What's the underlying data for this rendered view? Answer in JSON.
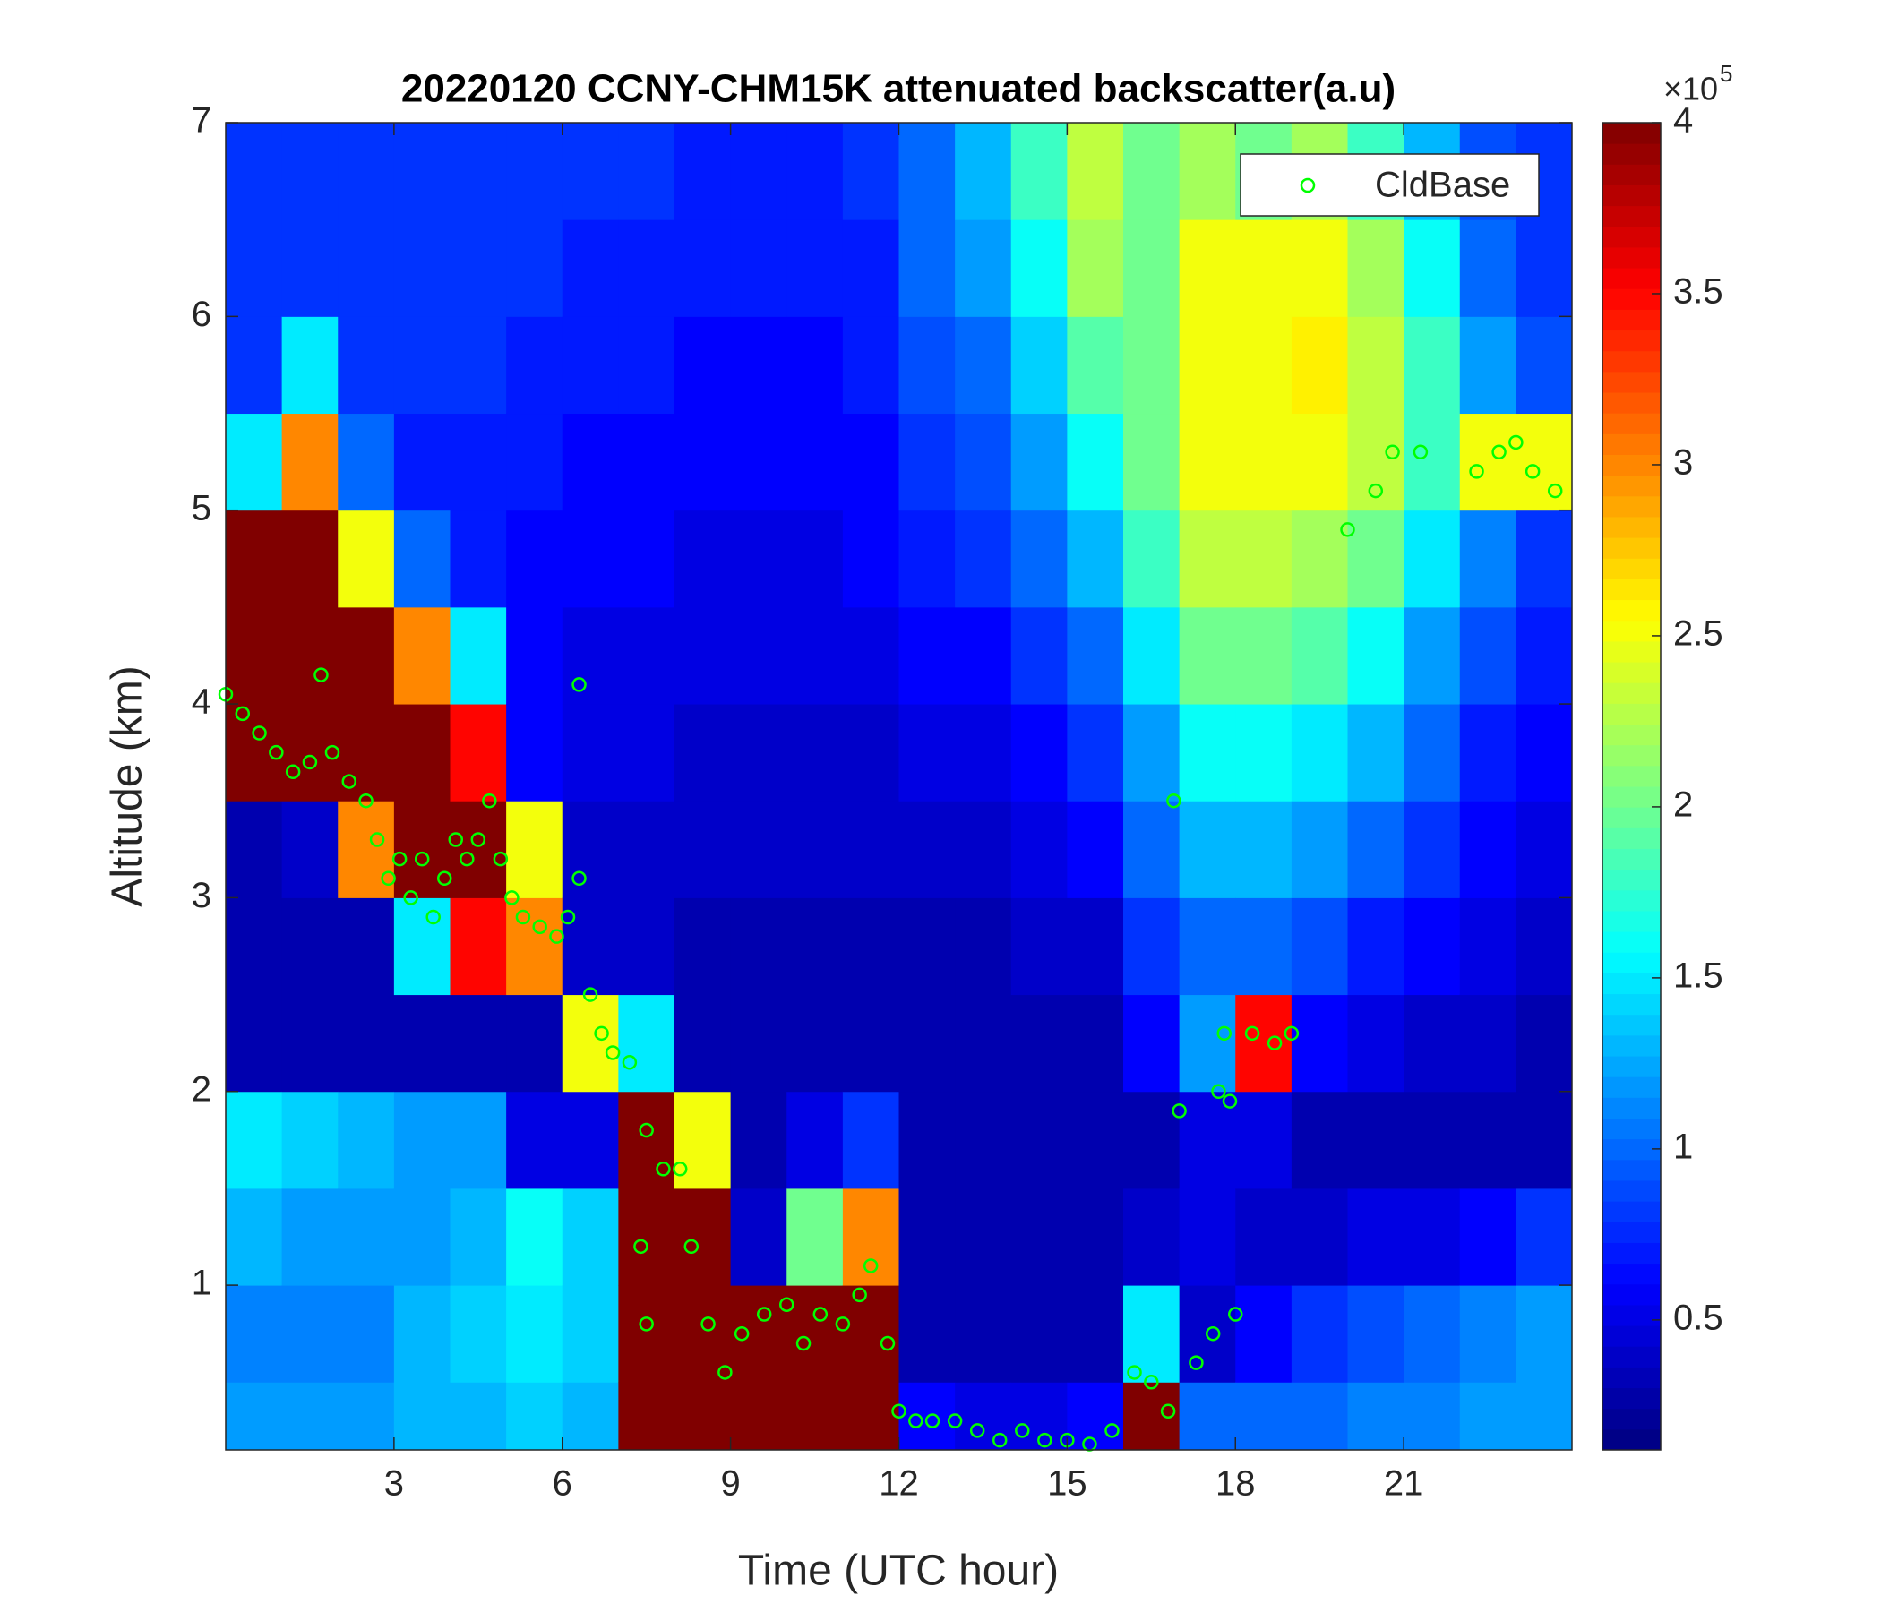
{
  "chart_data": {
    "type": "heatmap",
    "title": "20220120 CCNY-CHM15K attenuated backscatter(a.u)",
    "xlabel": "Time (UTC hour)",
    "ylabel": "Altitude (km)",
    "xlim": [
      0,
      24
    ],
    "ylim": [
      0.15,
      7
    ],
    "xticks": [
      3,
      6,
      9,
      12,
      15,
      18,
      21
    ],
    "yticks": [
      1,
      2,
      3,
      4,
      5,
      6,
      7
    ],
    "x_edges": [
      0,
      1,
      2,
      3,
      4,
      5,
      6,
      7,
      8,
      9,
      10,
      11,
      12,
      13,
      14,
      15,
      16,
      17,
      18,
      19,
      20,
      21,
      22,
      23,
      24
    ],
    "y_edges": [
      0.15,
      0.5,
      1,
      1.5,
      2,
      2.5,
      3,
      3.5,
      4,
      4.5,
      5,
      5.5,
      6,
      6.5,
      7
    ],
    "z": [
      [
        1.2,
        1.1,
        1.3,
        1.5,
        0.3,
        0.3,
        0.3,
        4,
        4,
        4,
        1.5,
        0.8,
        0.8,
        0.8
      ],
      [
        1.2,
        1.1,
        1.2,
        1.4,
        0.3,
        0.3,
        0.4,
        4,
        4,
        4,
        3,
        1.5,
        0.8,
        0.8
      ],
      [
        1.2,
        1.1,
        1.2,
        1.3,
        0.3,
        0.3,
        3,
        4,
        4,
        2.5,
        1.0,
        0.8,
        0.8,
        0.8
      ],
      [
        1.3,
        1.3,
        1.2,
        1.2,
        0.3,
        1.5,
        4,
        4,
        3,
        1.0,
        0.7,
        0.8,
        0.8,
        0.8
      ],
      [
        1.3,
        1.4,
        1.3,
        1.2,
        0.3,
        3.5,
        4,
        3.5,
        1.5,
        0.7,
        0.7,
        0.8,
        0.8,
        0.8
      ],
      [
        1.4,
        1.5,
        1.6,
        0.5,
        0.3,
        3,
        2.5,
        0.6,
        0.6,
        0.6,
        0.7,
        0.7,
        0.8,
        0.8
      ],
      [
        1.3,
        1.4,
        1.4,
        0.5,
        2.5,
        0.4,
        0.4,
        0.5,
        0.5,
        0.6,
        0.6,
        0.7,
        0.7,
        0.8
      ],
      [
        4,
        4,
        4,
        4,
        1.5,
        0.4,
        0.4,
        0.5,
        0.5,
        0.6,
        0.6,
        0.7,
        0.7,
        0.8
      ],
      [
        4,
        4,
        4,
        2.5,
        0.3,
        0.3,
        0.4,
        0.4,
        0.5,
        0.5,
        0.6,
        0.6,
        0.7,
        0.7
      ],
      [
        4,
        4,
        0.4,
        0.3,
        0.3,
        0.3,
        0.4,
        0.4,
        0.5,
        0.5,
        0.6,
        0.6,
        0.7,
        0.7
      ],
      [
        4,
        4,
        2,
        0.5,
        0.3,
        0.3,
        0.4,
        0.4,
        0.5,
        0.5,
        0.6,
        0.6,
        0.7,
        0.7
      ],
      [
        4,
        4,
        3,
        0.8,
        0.3,
        0.3,
        0.4,
        0.4,
        0.5,
        0.6,
        0.6,
        0.7,
        0.7,
        0.8
      ],
      [
        0.6,
        0.3,
        0.3,
        0.3,
        0.3,
        0.3,
        0.4,
        0.5,
        0.6,
        0.7,
        0.8,
        0.9,
        1.0,
        1.0
      ],
      [
        0.5,
        0.3,
        0.3,
        0.3,
        0.3,
        0.3,
        0.4,
        0.5,
        0.6,
        0.8,
        0.9,
        1.0,
        1.2,
        1.3
      ],
      [
        0.5,
        0.3,
        0.3,
        0.3,
        0.3,
        0.4,
        0.5,
        0.6,
        0.8,
        1.0,
        1.2,
        1.4,
        1.6,
        1.8
      ],
      [
        0.6,
        0.3,
        0.3,
        0.3,
        0.3,
        0.4,
        0.6,
        0.8,
        1.0,
        1.3,
        1.6,
        1.9,
        2.2,
        2.3
      ],
      [
        4,
        1.5,
        0.4,
        0.3,
        0.6,
        0.8,
        1.0,
        1.2,
        1.5,
        1.8,
        2,
        2,
        2,
        2
      ],
      [
        1.0,
        0.4,
        0.5,
        0.5,
        1.2,
        1.0,
        1.3,
        1.6,
        2,
        2.3,
        2.5,
        2.5,
        2.5,
        2.2
      ],
      [
        1.0,
        0.6,
        0.4,
        0.5,
        3.5,
        1.0,
        1.3,
        1.6,
        2,
        2.3,
        2.5,
        2.5,
        2.5,
        2.0
      ],
      [
        1.0,
        0.8,
        0.4,
        0.3,
        0.6,
        0.9,
        1.2,
        1.5,
        1.9,
        2.2,
        2.5,
        2.6,
        2.5,
        2.2
      ],
      [
        1.1,
        0.9,
        0.5,
        0.3,
        0.5,
        0.7,
        1.0,
        1.3,
        1.6,
        2.0,
        2.3,
        2.3,
        2.2,
        1.8
      ],
      [
        1.1,
        1.0,
        0.5,
        0.3,
        0.4,
        0.6,
        0.8,
        1.0,
        1.2,
        1.5,
        1.8,
        1.8,
        1.6,
        1.3
      ],
      [
        1.2,
        1.1,
        0.6,
        0.3,
        0.4,
        0.5,
        0.6,
        0.7,
        0.9,
        1.1,
        2.5,
        1.2,
        1.0,
        0.9
      ],
      [
        1.2,
        1.2,
        0.8,
        0.3,
        0.3,
        0.4,
        0.5,
        0.6,
        0.7,
        0.8,
        2.5,
        0.9,
        0.8,
        0.8
      ]
    ],
    "clim": [
      0.12,
      4
    ],
    "cticks": [
      0.5,
      1,
      1.5,
      2,
      2.5,
      3,
      3.5,
      4
    ],
    "colorbar_multiplier": {
      "base": "×10",
      "exponent": "5"
    },
    "colormap": "jet",
    "legend": "northeast",
    "series": [
      {
        "name": "CldBase",
        "type": "scatter",
        "color": "#00ff00",
        "x": [
          0.0,
          0.3,
          0.6,
          0.9,
          1.2,
          1.5,
          1.7,
          1.9,
          2.2,
          2.5,
          2.7,
          2.9,
          3.1,
          3.3,
          3.5,
          3.7,
          3.9,
          4.1,
          4.3,
          4.5,
          4.7,
          4.9,
          5.1,
          5.3,
          5.6,
          5.9,
          6.1,
          6.3,
          6.3,
          6.5,
          6.7,
          6.9,
          7.2,
          7.5,
          7.4,
          7.5,
          7.8,
          8.1,
          8.3,
          8.6,
          8.9,
          9.2,
          9.6,
          10.0,
          10.3,
          10.6,
          11.0,
          11.3,
          11.5,
          11.8,
          12.0,
          12.3,
          12.6,
          13.0,
          13.4,
          13.8,
          14.2,
          14.6,
          15.0,
          15.4,
          15.8,
          16.2,
          16.5,
          16.8,
          16.9,
          17.0,
          17.3,
          17.6,
          17.8,
          17.7,
          17.9,
          18.0,
          18.3,
          18.7,
          19.0,
          20.0,
          20.5,
          20.8,
          21.3,
          22.3,
          22.7,
          23.0,
          23.3,
          23.7
        ],
        "y": [
          4.05,
          3.95,
          3.85,
          3.75,
          3.65,
          3.7,
          4.15,
          3.75,
          3.6,
          3.5,
          3.3,
          3.1,
          3.2,
          3.0,
          3.2,
          2.9,
          3.1,
          3.3,
          3.2,
          3.3,
          3.5,
          3.2,
          3.0,
          2.9,
          2.85,
          2.8,
          2.9,
          3.1,
          4.1,
          2.5,
          2.3,
          2.2,
          2.15,
          1.8,
          1.2,
          0.8,
          1.6,
          1.6,
          1.2,
          0.8,
          0.55,
          0.75,
          0.85,
          0.9,
          0.7,
          0.85,
          0.8,
          0.95,
          1.1,
          0.7,
          0.35,
          0.3,
          0.3,
          0.3,
          0.25,
          0.2,
          0.25,
          0.2,
          0.2,
          0.18,
          0.25,
          0.55,
          0.5,
          0.35,
          3.5,
          1.9,
          0.6,
          0.75,
          2.3,
          2.0,
          1.95,
          0.85,
          2.3,
          2.25,
          2.3,
          4.9,
          5.1,
          5.3,
          5.3,
          5.2,
          5.3,
          5.35,
          5.2,
          5.1
        ]
      }
    ]
  }
}
